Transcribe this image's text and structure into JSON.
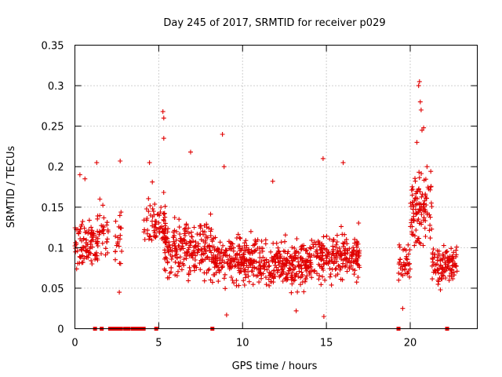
{
  "chart_data": {
    "type": "scatter",
    "title": "Day 245 of 2017, SRMTID for receiver p029",
    "xlabel": "GPS time / hours",
    "ylabel": "SRMTID / TECUs",
    "xlim": [
      0,
      24
    ],
    "ylim": [
      0,
      0.35
    ],
    "x_ticks": [
      0,
      5,
      10,
      15,
      20
    ],
    "x_tick_labels": [
      "0",
      "5",
      "10",
      "15",
      "20"
    ],
    "y_ticks": [
      0,
      0.05,
      0.1,
      0.15,
      0.2,
      0.25,
      0.3,
      0.35
    ],
    "y_tick_labels": [
      "0",
      "0.05",
      "0.1",
      "0.15",
      "0.2",
      "0.25",
      "0.3",
      "0.35"
    ],
    "grid": true,
    "marker": "+",
    "color": "#e00000",
    "zero_value_hours": [
      1.2,
      1.6,
      2.1,
      2.25,
      2.4,
      2.55,
      2.75,
      3.0,
      3.2,
      3.45,
      3.6,
      3.75,
      3.9,
      4.1,
      4.85,
      8.2,
      19.3,
      22.2
    ],
    "series": [
      {
        "name": "SRMTID",
        "clusters": [
          {
            "x_range": [
              0.0,
              1.4
            ],
            "y_center": 0.105,
            "y_spread": 0.035,
            "n": 90
          },
          {
            "x_range": [
              1.3,
              2.0
            ],
            "y_center": 0.11,
            "y_spread": 0.04,
            "n": 35
          },
          {
            "x_range": [
              2.4,
              2.8
            ],
            "y_center": 0.11,
            "y_spread": 0.04,
            "n": 20
          },
          {
            "x_range": [
              4.1,
              5.4
            ],
            "y_center": 0.13,
            "y_spread": 0.04,
            "n": 70
          },
          {
            "x_range": [
              5.3,
              8.2
            ],
            "y_center": 0.1,
            "y_spread": 0.035,
            "n": 220
          },
          {
            "x_range": [
              8.2,
              11.0
            ],
            "y_center": 0.085,
            "y_spread": 0.03,
            "n": 220
          },
          {
            "x_range": [
              11.0,
              14.0
            ],
            "y_center": 0.08,
            "y_spread": 0.03,
            "n": 240
          },
          {
            "x_range": [
              14.0,
              17.0
            ],
            "y_center": 0.09,
            "y_spread": 0.03,
            "n": 220
          },
          {
            "x_range": [
              19.3,
              20.0
            ],
            "y_center": 0.08,
            "y_spread": 0.03,
            "n": 40
          },
          {
            "x_range": [
              20.0,
              21.3
            ],
            "y_center": 0.15,
            "y_spread": 0.045,
            "n": 110
          },
          {
            "x_range": [
              21.3,
              22.8
            ],
            "y_center": 0.08,
            "y_spread": 0.025,
            "n": 110
          }
        ],
        "peaks": [
          {
            "x": 0.3,
            "y": 0.19
          },
          {
            "x": 0.6,
            "y": 0.185
          },
          {
            "x": 1.3,
            "y": 0.205
          },
          {
            "x": 2.7,
            "y": 0.207
          },
          {
            "x": 2.65,
            "y": 0.045
          },
          {
            "x": 4.45,
            "y": 0.205
          },
          {
            "x": 5.25,
            "y": 0.268
          },
          {
            "x": 5.3,
            "y": 0.26
          },
          {
            "x": 5.3,
            "y": 0.235
          },
          {
            "x": 6.9,
            "y": 0.218
          },
          {
            "x": 8.8,
            "y": 0.24
          },
          {
            "x": 8.9,
            "y": 0.2
          },
          {
            "x": 9.05,
            "y": 0.017
          },
          {
            "x": 11.8,
            "y": 0.182
          },
          {
            "x": 13.2,
            "y": 0.022
          },
          {
            "x": 14.8,
            "y": 0.21
          },
          {
            "x": 14.85,
            "y": 0.015
          },
          {
            "x": 16.0,
            "y": 0.205
          },
          {
            "x": 19.55,
            "y": 0.025
          },
          {
            "x": 20.5,
            "y": 0.3
          },
          {
            "x": 20.55,
            "y": 0.305
          },
          {
            "x": 20.6,
            "y": 0.28
          },
          {
            "x": 20.65,
            "y": 0.27
          },
          {
            "x": 20.7,
            "y": 0.245
          },
          {
            "x": 20.4,
            "y": 0.23
          },
          {
            "x": 20.8,
            "y": 0.248
          },
          {
            "x": 21.0,
            "y": 0.2
          },
          {
            "x": 21.8,
            "y": 0.048
          }
        ]
      }
    ]
  }
}
